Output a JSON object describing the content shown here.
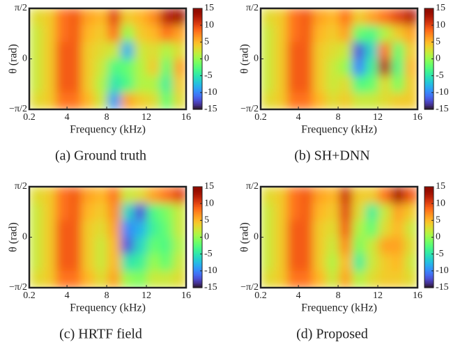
{
  "chart_data": [
    {
      "type": "heatmap",
      "caption": "(a) Ground truth",
      "xlabel": "Frequency (kHz)",
      "ylabel": "θ (rad)",
      "xlim": [
        0.2,
        16
      ],
      "ylim": [
        -1.5708,
        1.5708
      ],
      "xticks": [
        0.2,
        4,
        8,
        12,
        16
      ],
      "yticks": [
        {
          "value": -1.5708,
          "label": "−π/2"
        },
        0,
        {
          "value": 1.5708,
          "label": "π/2"
        }
      ],
      "clim": [
        -15,
        15
      ],
      "cticks": [
        15,
        10,
        5,
        0,
        -5,
        -10,
        -15
      ],
      "colormap": "turbo",
      "z": [
        [
          3,
          4,
          8,
          9,
          6,
          5,
          10,
          4,
          5,
          7,
          12,
          13
        ],
        [
          2,
          4,
          8,
          9,
          5,
          4,
          8,
          0,
          4,
          5,
          8,
          6
        ],
        [
          2,
          4,
          9,
          9,
          4,
          3,
          2,
          -8,
          2,
          3,
          1,
          3
        ],
        [
          2,
          4,
          9,
          9,
          4,
          2,
          -3,
          -2,
          1,
          4,
          -2,
          6
        ],
        [
          2,
          4,
          9,
          9,
          4,
          1,
          -5,
          -3,
          1,
          1,
          -4,
          4
        ],
        [
          3,
          4,
          8,
          8,
          5,
          2,
          -9,
          6,
          4,
          3,
          -2,
          3
        ]
      ]
    },
    {
      "type": "heatmap",
      "caption": "(b) SH+DNN",
      "xlabel": "Frequency (kHz)",
      "ylabel": "θ (rad)",
      "xlim": [
        0.2,
        16
      ],
      "ylim": [
        -1.5708,
        1.5708
      ],
      "xticks": [
        0.2,
        4,
        8,
        12,
        16
      ],
      "yticks": [
        {
          "value": -1.5708,
          "label": "−π/2"
        },
        0,
        {
          "value": 1.5708,
          "label": "π/2"
        }
      ],
      "clim": [
        -15,
        15
      ],
      "cticks": [
        15,
        10,
        5,
        0,
        -5,
        -10,
        -15
      ],
      "colormap": "turbo",
      "z": [
        [
          3,
          4,
          8,
          9,
          6,
          5,
          8,
          4,
          6,
          8,
          10,
          12
        ],
        [
          2,
          4,
          8,
          9,
          5,
          4,
          6,
          -2,
          -3,
          1,
          4,
          6
        ],
        [
          2,
          4,
          9,
          9,
          4,
          3,
          2,
          -12,
          -6,
          8,
          -2,
          4
        ],
        [
          2,
          4,
          9,
          9,
          4,
          2,
          0,
          -10,
          -4,
          12,
          -3,
          5
        ],
        [
          2,
          4,
          9,
          9,
          4,
          2,
          3,
          -3,
          -2,
          3,
          -1,
          4
        ],
        [
          3,
          4,
          8,
          8,
          5,
          3,
          4,
          2,
          2,
          3,
          4,
          4
        ]
      ]
    },
    {
      "type": "heatmap",
      "caption": "(c) HRTF field",
      "xlabel": "Frequency (kHz)",
      "ylabel": "θ (rad)",
      "xlim": [
        0.2,
        16
      ],
      "ylim": [
        -1.5708,
        1.5708
      ],
      "xticks": [
        0.2,
        4,
        8,
        12,
        16
      ],
      "yticks": [
        {
          "value": -1.5708,
          "label": "−π/2"
        },
        0,
        {
          "value": 1.5708,
          "label": "π/2"
        }
      ],
      "clim": [
        -15,
        15
      ],
      "cticks": [
        15,
        10,
        5,
        0,
        -5,
        -10,
        -15
      ],
      "colormap": "turbo",
      "z": [
        [
          3,
          4,
          8,
          9,
          6,
          5,
          8,
          2,
          3,
          6,
          8,
          10
        ],
        [
          2,
          4,
          8,
          9,
          5,
          4,
          7,
          -6,
          -12,
          -3,
          -1,
          2
        ],
        [
          2,
          4,
          9,
          9,
          4,
          3,
          6,
          -10,
          -8,
          -4,
          -2,
          2
        ],
        [
          2,
          4,
          9,
          9,
          4,
          2,
          5,
          -12,
          -6,
          -2,
          -3,
          1
        ],
        [
          2,
          4,
          9,
          9,
          4,
          2,
          5,
          -5,
          -4,
          0,
          -2,
          2
        ],
        [
          3,
          4,
          8,
          8,
          5,
          3,
          6,
          0,
          -1,
          2,
          2,
          3
        ]
      ]
    },
    {
      "type": "heatmap",
      "caption": "(d) Proposed",
      "xlabel": "Frequency (kHz)",
      "ylabel": "θ (rad)",
      "xlim": [
        0.2,
        16
      ],
      "ylim": [
        -1.5708,
        1.5708
      ],
      "xticks": [
        0.2,
        4,
        8,
        12,
        16
      ],
      "yticks": [
        {
          "value": -1.5708,
          "label": "−π/2"
        },
        0,
        {
          "value": 1.5708,
          "label": "π/2"
        }
      ],
      "clim": [
        -15,
        15
      ],
      "cticks": [
        15,
        10,
        5,
        0,
        -5,
        -10,
        -15
      ],
      "colormap": "turbo",
      "z": [
        [
          3,
          4,
          8,
          9,
          6,
          5,
          11,
          4,
          4,
          8,
          13,
          9
        ],
        [
          2,
          4,
          8,
          9,
          5,
          4,
          10,
          3,
          -4,
          2,
          6,
          4
        ],
        [
          2,
          4,
          9,
          9,
          4,
          3,
          9,
          1,
          -2,
          3,
          5,
          2
        ],
        [
          2,
          4,
          9,
          9,
          4,
          2,
          7,
          -1,
          2,
          6,
          6,
          3
        ],
        [
          2,
          4,
          9,
          9,
          4,
          1,
          5,
          -4,
          2,
          4,
          5,
          2
        ],
        [
          3,
          4,
          8,
          8,
          5,
          2,
          6,
          1,
          3,
          4,
          4,
          3
        ]
      ]
    }
  ]
}
